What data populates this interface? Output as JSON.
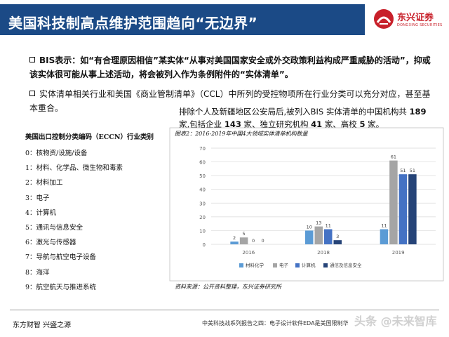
{
  "header": {
    "title": "美国科技制高点维护范围趋向“无边界”",
    "brand_name": "东兴证券",
    "brand_en": "DONGXING SECURITIES",
    "bar_color": "#1b4a86",
    "brand_color": "#c8202a"
  },
  "bullets": [
    "BIS表示：如“有合理原因相信”某实体“从事对美国国家安全或外交政策利益构成严重威胁的活动”，抑或该实体很可能从事上述活动，将会被列入作为条例附件的“实体清单”。",
    "实体清单相关行业和美国《商业管制清单》（CCL）中所列的受控物项所在行业分类可以充分对应，甚至基本重合。"
  ],
  "summary": {
    "p1": "排除个人及新疆地区公安局后,被列入BIS 实体清单的中国机构共",
    "n1": "189",
    "p2": "家,包括企业",
    "n2": "143",
    "p3": "家、独立研究机构",
    "n3": "41",
    "p4": "家、高校",
    "n4": "5",
    "p5": "家。"
  },
  "eccn": {
    "title": "美国出口控制分类编码（ECCN）行业类别",
    "items": [
      "0：核物资/设施/设备",
      "1：材料、化学品、微生物和毒素",
      "2：材料加工",
      "3：电子",
      "4：计算机",
      "5：通讯与信息安全",
      "6：激光与传感器",
      "7：导航与航空电子设备",
      "8：海洋",
      "9：航空航天与推进系统"
    ]
  },
  "chart_caption": "图表2：2016-2019年中国4大领域实体清单机构数量",
  "chart_source": "资料来源：公开资料整理，东兴证券研究所",
  "chart_data": {
    "type": "bar",
    "title": "图表2：2016-2019年中国4大领域实体清单机构数量",
    "categories": [
      "2016",
      "2018",
      "2019"
    ],
    "series": [
      {
        "name": "材料化学",
        "color": "#5b9bd5",
        "values": [
          2,
          10,
          11
        ]
      },
      {
        "name": "电子",
        "color": "#a5a5a5",
        "values": [
          5,
          13,
          61
        ]
      },
      {
        "name": "计算机",
        "color": "#4472c4",
        "values": [
          0,
          11,
          51
        ]
      },
      {
        "name": "通信及信息安全",
        "color": "#264478",
        "values": [
          0,
          3,
          51
        ]
      }
    ],
    "ylim": [
      0,
      70
    ],
    "yticks": [
      0,
      10,
      20,
      30,
      40,
      50,
      60,
      70
    ],
    "grid": true,
    "legend": "bottom"
  },
  "footer": {
    "left": "东方财智 兴盛之源",
    "right": "中美科技战系列报告之四：电子设计软件EDA是美国限制华",
    "watermark": "头条 @未来智库"
  }
}
